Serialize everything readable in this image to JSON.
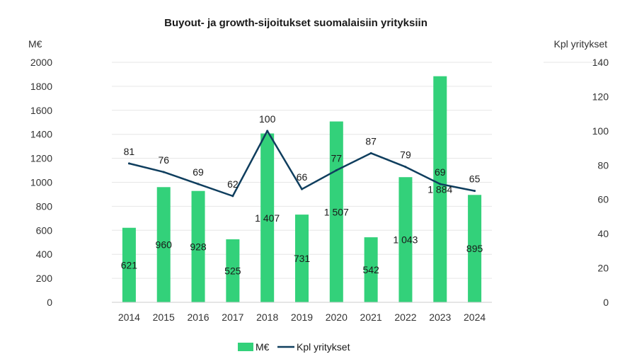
{
  "chart_data": {
    "type": "bar",
    "title": "Buyout- ja growth-sijoitukset suomalaisiin yrityksiin",
    "categories": [
      "2014",
      "2015",
      "2016",
      "2017",
      "2018",
      "2019",
      "2020",
      "2021",
      "2022",
      "2023",
      "2024"
    ],
    "series": [
      {
        "name": "M€",
        "type": "bar",
        "axis": "left",
        "values": [
          621,
          960,
          928,
          525,
          1407,
          731,
          1507,
          542,
          1043,
          1884,
          895
        ],
        "labels": [
          "621",
          "960",
          "928",
          "525",
          "1 407",
          "731",
          "1 507",
          "542",
          "1 043",
          "1 884",
          "895"
        ],
        "color": "#33d17a"
      },
      {
        "name": "Kpl yritykset",
        "type": "line",
        "axis": "right",
        "values": [
          81,
          76,
          69,
          62,
          100,
          66,
          77,
          87,
          79,
          69,
          65
        ],
        "labels": [
          "81",
          "76",
          "69",
          "62",
          "100",
          "66",
          "77",
          "87",
          "79",
          "69",
          "65"
        ],
        "color": "#0f3e5e"
      }
    ],
    "left_axis": {
      "unit": "M€",
      "ylim": [
        0,
        2000
      ],
      "ticks": [
        "0",
        "200",
        "400",
        "600",
        "800",
        "1000",
        "1200",
        "1400",
        "1600",
        "1800",
        "2000"
      ]
    },
    "right_axis": {
      "unit": "Kpl yritykset",
      "ylim": [
        0,
        140
      ],
      "ticks": [
        "0",
        "20",
        "40",
        "60",
        "80",
        "100",
        "120",
        "140"
      ]
    },
    "grid": true,
    "legend_position": "bottom"
  }
}
